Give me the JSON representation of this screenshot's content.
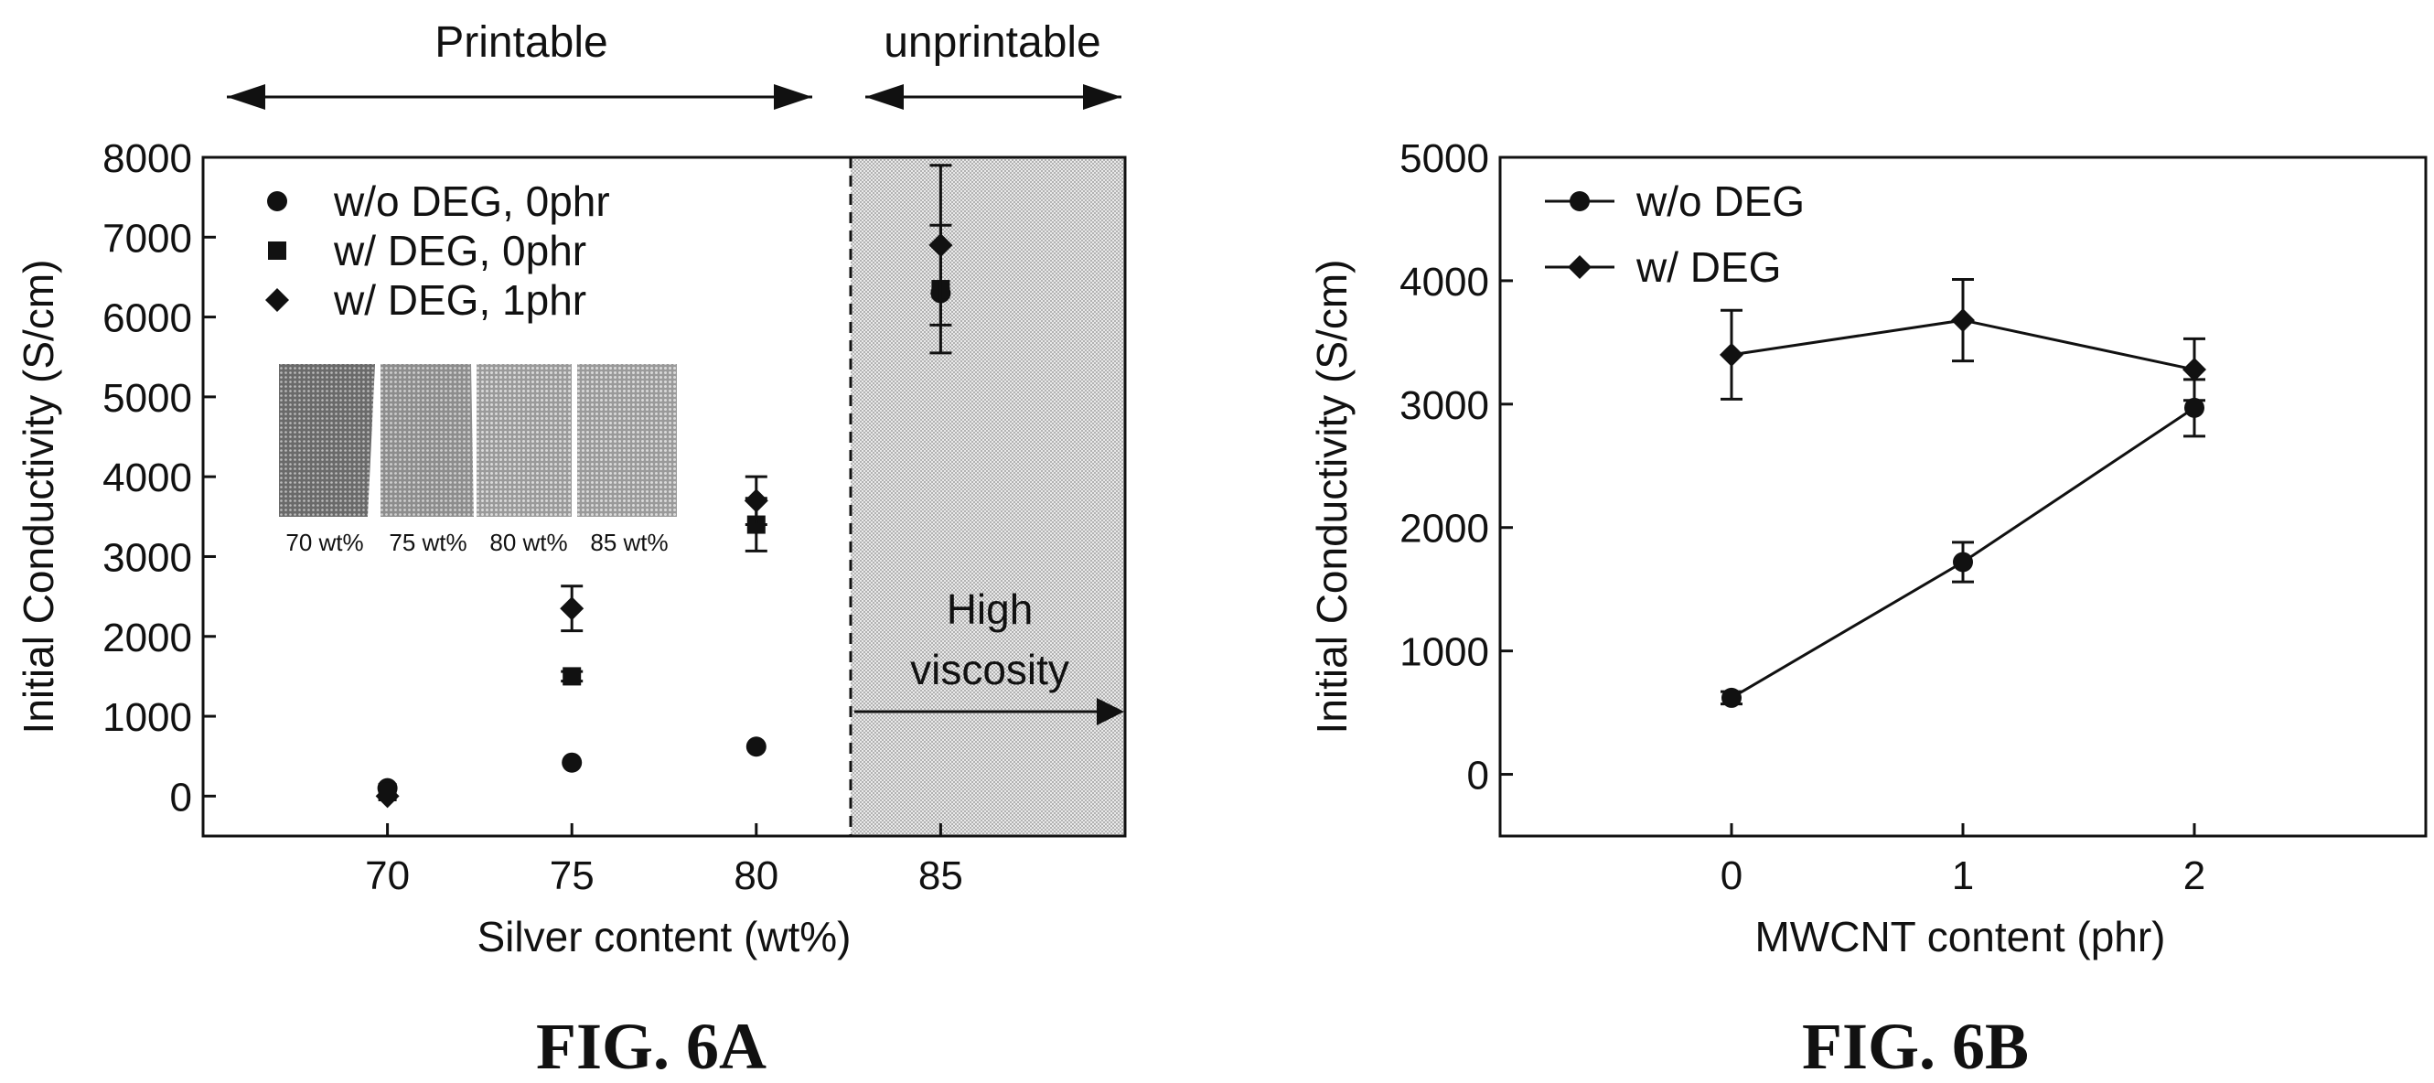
{
  "figure_a": {
    "caption": "FIG. 6A",
    "region_printable": "Printable",
    "region_unprintable": "unprintable",
    "high_viscosity_lines": [
      "High",
      "viscosity"
    ],
    "inset_labels": [
      "70 wt%",
      "75 wt%",
      "80 wt%",
      "85 wt%"
    ]
  },
  "figure_b": {
    "caption": "FIG. 6B"
  },
  "colors": {
    "ink": "#111111",
    "shade": "#d6d6d6",
    "background": "#ffffff"
  },
  "chart_data": [
    {
      "type": "scatter",
      "xlabel": "Silver content (wt%)",
      "ylabel": "Initial Conductivity (S/cm)",
      "xlim": [
        65,
        90
      ],
      "ylim": [
        -500,
        8000
      ],
      "xticks": [
        "70",
        "75",
        "80",
        "85"
      ],
      "yticks": [
        "0",
        "1000",
        "2000",
        "3000",
        "4000",
        "5000",
        "6000",
        "7000",
        "8000"
      ],
      "grid": false,
      "legend_position": "top-left",
      "unprintable_from": 82.5,
      "series": [
        {
          "name": "w/o DEG, 0phr",
          "marker": "circle",
          "x": [
            70,
            75,
            80,
            85
          ],
          "y": [
            100,
            420,
            620,
            6300
          ],
          "err": [
            0,
            0,
            0,
            0
          ]
        },
        {
          "name": "w/   DEG, 0phr",
          "marker": "square",
          "x": [
            70,
            75,
            80,
            85
          ],
          "y": [
            50,
            1500,
            3400,
            6350
          ],
          "err": [
            0,
            60,
            330,
            800
          ]
        },
        {
          "name": "w/   DEG, 1phr",
          "marker": "diamond",
          "x": [
            70,
            75,
            80,
            85
          ],
          "y": [
            0,
            2350,
            3700,
            6900
          ],
          "err": [
            0,
            280,
            300,
            1000
          ]
        }
      ]
    },
    {
      "type": "line",
      "xlabel": "MWCNT content (phr)",
      "ylabel": "Initial Conductivity (S/cm)",
      "xlim": [
        -1,
        3
      ],
      "ylim": [
        -500,
        5000
      ],
      "xticks": [
        "0",
        "1",
        "2"
      ],
      "yticks": [
        "0",
        "1000",
        "2000",
        "3000",
        "4000",
        "5000"
      ],
      "grid": false,
      "legend_position": "top-left",
      "series": [
        {
          "name": "w/o DEG",
          "marker": "circle",
          "x": [
            0,
            1,
            2
          ],
          "y": [
            620,
            1720,
            2970
          ],
          "err": [
            50,
            160,
            230
          ]
        },
        {
          "name": "w/   DEG",
          "marker": "diamond",
          "x": [
            0,
            1,
            2
          ],
          "y": [
            3400,
            3680,
            3280
          ],
          "err": [
            360,
            330,
            250
          ]
        }
      ]
    }
  ]
}
